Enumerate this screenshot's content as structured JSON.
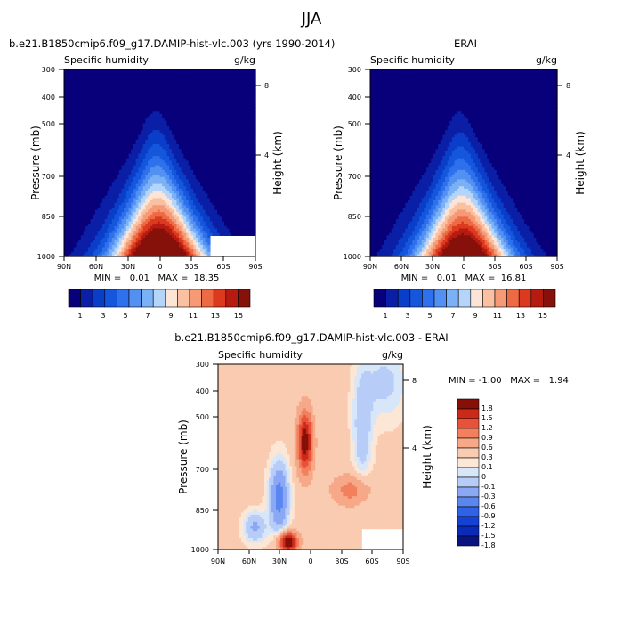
{
  "figure": {
    "title": "JJA"
  },
  "chart_data": [
    {
      "type": "heatmap",
      "title": "b.e21.B1850cmip6.f09_g17.DAMIP-hist-vlc.003 (yrs 1990-2014)",
      "left_label": "Specific humidity",
      "right_label": "g/kg",
      "ylabel": "Pressure (mb)",
      "ylabel_right": "Height (km)",
      "x_ticks": [
        "90N",
        "60N",
        "30N",
        "0",
        "30S",
        "60S",
        "90S"
      ],
      "y_ticks": [
        "300",
        "400",
        "500",
        "700",
        "850",
        "1000"
      ],
      "height_ticks": [
        "8",
        "4"
      ],
      "stats": "MIN =   0.01   MAX =  18.35",
      "levels": [
        1,
        2,
        3,
        4,
        5,
        6,
        7,
        8,
        9,
        10,
        11,
        12,
        13,
        14,
        15
      ],
      "colorbar_labels": [
        "1",
        "3",
        "5",
        "7",
        "9",
        "11",
        "13",
        "15"
      ]
    },
    {
      "type": "heatmap",
      "title": "ERAI",
      "left_label": "Specific humidity",
      "right_label": "g/kg",
      "ylabel": "Pressure (mb)",
      "ylabel_right": "Height (km)",
      "x_ticks": [
        "90N",
        "60N",
        "30N",
        "0",
        "30S",
        "60S",
        "90S"
      ],
      "y_ticks": [
        "300",
        "400",
        "500",
        "700",
        "850",
        "1000"
      ],
      "height_ticks": [
        "8",
        "4"
      ],
      "stats": "MIN =   0.01   MAX =  16.81",
      "levels": [
        1,
        2,
        3,
        4,
        5,
        6,
        7,
        8,
        9,
        10,
        11,
        12,
        13,
        14,
        15
      ],
      "colorbar_labels": [
        "1",
        "3",
        "5",
        "7",
        "9",
        "11",
        "13",
        "15"
      ]
    },
    {
      "type": "heatmap",
      "title": "b.e21.B1850cmip6.f09_g17.DAMIP-hist-vlc.003 - ERAI",
      "left_label": "Specific humidity",
      "right_label": "g/kg",
      "ylabel": "Pressure (mb)",
      "ylabel_right": "Height (km)",
      "x_ticks": [
        "90N",
        "60N",
        "30N",
        "0",
        "30S",
        "60S",
        "90S"
      ],
      "y_ticks": [
        "300",
        "400",
        "500",
        "700",
        "850",
        "1000"
      ],
      "height_ticks": [
        "8",
        "4"
      ],
      "stats": "MIN = -1.00   MAX =   1.94",
      "levels": [
        -1.8,
        -1.5,
        -1.2,
        -0.9,
        -0.6,
        -0.3,
        -0.1,
        0,
        0.1,
        0.3,
        0.6,
        0.9,
        1.2,
        1.5,
        1.8
      ],
      "colorbar_labels": [
        "1.8",
        "1.5",
        "1.2",
        "0.9",
        "0.6",
        "0.3",
        "0.1",
        "0",
        "-0.1",
        "-0.3",
        "-0.6",
        "-0.9",
        "-1.2",
        "-1.5",
        "-1.8"
      ]
    }
  ],
  "colors": {
    "abs": [
      "#08007a",
      "#0a1ea6",
      "#0a3ec8",
      "#1456dc",
      "#2f70ec",
      "#5290f2",
      "#7ab0f6",
      "#b4d4fa",
      "#fce4d6",
      "#f9c0a2",
      "#f59a75",
      "#ee6a45",
      "#dc3a1e",
      "#b61a10",
      "#86100a"
    ],
    "diff": [
      "#0a1480",
      "#0a2ab8",
      "#1442d4",
      "#2f62e6",
      "#5a86f0",
      "#8aa8f4",
      "#b8ccf8",
      "#d8e6fa",
      "#fce6d6",
      "#f9cbb0",
      "#f6a888",
      "#f2805c",
      "#e8523a",
      "#cc2a18",
      "#861008"
    ]
  }
}
